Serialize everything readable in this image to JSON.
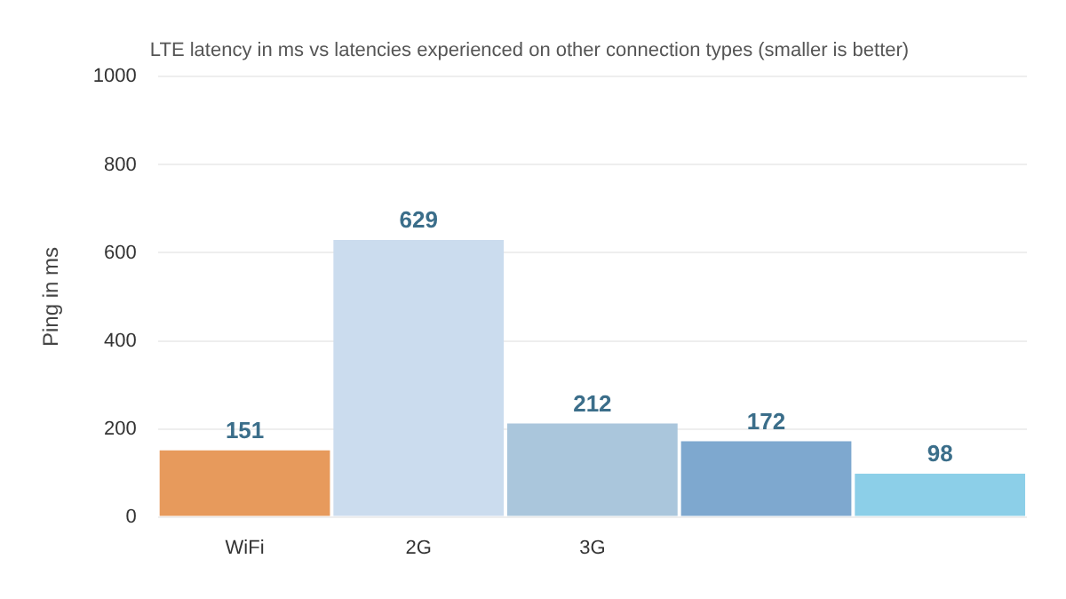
{
  "chart_data": {
    "type": "bar",
    "title": "LTE latency in ms vs latencies experienced on other connection types (smaller is better)",
    "ylabel": "Ping in ms",
    "categories": [
      "WiFi",
      "2G",
      "3G",
      null,
      null
    ],
    "values": [
      151,
      629,
      212,
      172,
      98
    ],
    "colors": [
      "#e79a5c",
      "#cbdcee",
      "#aac6dc",
      "#7ea8cf",
      "#8ccfe8"
    ],
    "ylim": [
      0,
      1000
    ],
    "yticks": [
      0,
      200,
      400,
      600,
      800,
      1000
    ],
    "grid": "y",
    "data_labels": true
  }
}
